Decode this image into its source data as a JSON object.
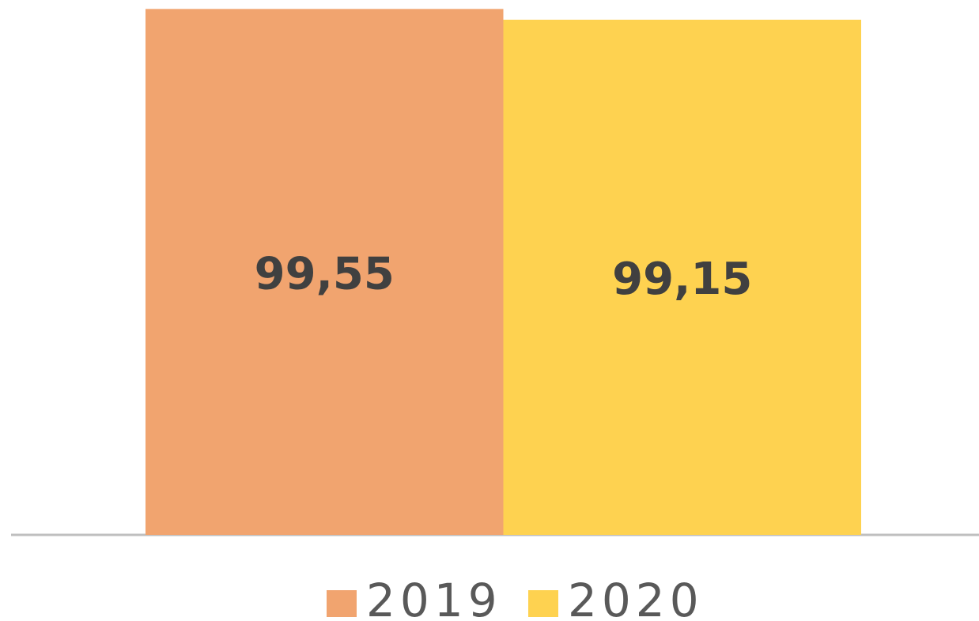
{
  "chart_data": {
    "type": "bar",
    "categories": [
      null
    ],
    "series": [
      {
        "name": "2019",
        "color": "#f1a46f",
        "values": [
          99.55
        ],
        "value_labels": [
          "99,55"
        ]
      },
      {
        "name": "2020",
        "color": "#fed250",
        "values": [
          99.15
        ],
        "value_labels": [
          "99,15"
        ]
      }
    ],
    "ylim": [
      80,
      100
    ],
    "legend": "bottom"
  }
}
